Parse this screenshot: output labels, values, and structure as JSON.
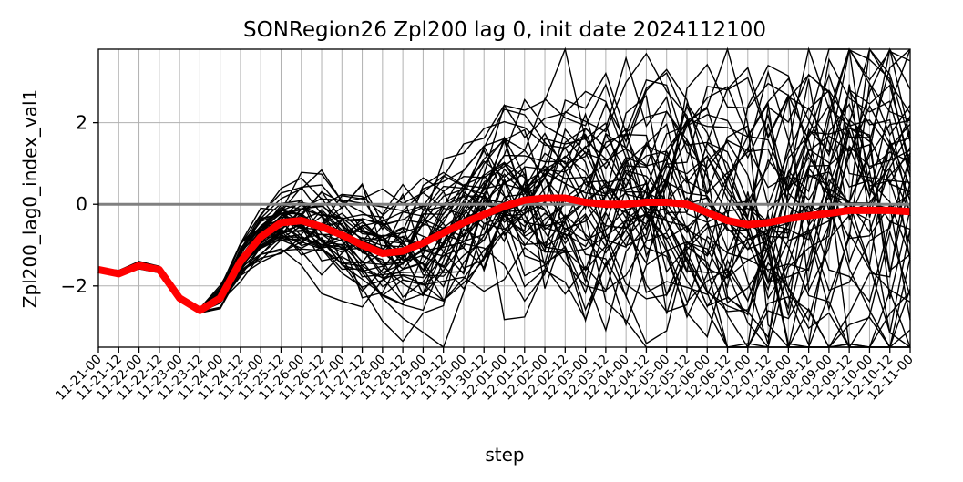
{
  "chart_data": {
    "type": "line",
    "title": "SONRegion26 Zpl200 lag 0, init date 2024112100",
    "xlabel": "step",
    "ylabel": "Zpl200_lag0_index_val1",
    "ylim": [
      -3.5,
      3.8
    ],
    "yticks": [
      -2,
      0,
      2
    ],
    "grid_x": true,
    "grid_y": true,
    "hline_at": 0,
    "x": [
      "11-21-00",
      "11-21-12",
      "11-22-00",
      "11-22-12",
      "11-23-00",
      "11-23-12",
      "11-24-00",
      "11-24-12",
      "11-25-00",
      "11-25-12",
      "11-26-00",
      "11-26-12",
      "11-27-00",
      "11-27-12",
      "11-28-00",
      "11-28-12",
      "11-29-00",
      "11-29-12",
      "11-30-00",
      "11-30-12",
      "12-01-00",
      "12-01-12",
      "12-02-00",
      "12-02-12",
      "12-03-00",
      "12-03-12",
      "12-04-00",
      "12-04-12",
      "12-05-00",
      "12-05-12",
      "12-06-00",
      "12-06-12",
      "12-07-00",
      "12-07-12",
      "12-08-00",
      "12-08-12",
      "12-09-00",
      "12-09-12",
      "12-10-00",
      "12-10-12",
      "12-11-00"
    ],
    "ensemble_members": 50,
    "ensemble_color": "#000000",
    "mean_color": "#ff0000",
    "hline_color": "#808080",
    "series": [
      {
        "values": [
          -1.6,
          -1.7,
          -1.5,
          -1.6,
          -2.3,
          -2.6,
          -2.3,
          -1.4,
          -0.8,
          -0.45,
          -0.4,
          -0.55,
          -0.75,
          -1.0,
          -1.2,
          -1.15,
          -0.95,
          -0.7,
          -0.45,
          -0.25,
          -0.05,
          0.1,
          0.15,
          0.15,
          0.05,
          0.0,
          0.0,
          0.05,
          0.05,
          0.0,
          -0.2,
          -0.4,
          -0.5,
          -0.45,
          -0.35,
          -0.28,
          -0.22,
          -0.15,
          -0.15,
          -0.15,
          -0.18
        ]
      }
    ]
  }
}
